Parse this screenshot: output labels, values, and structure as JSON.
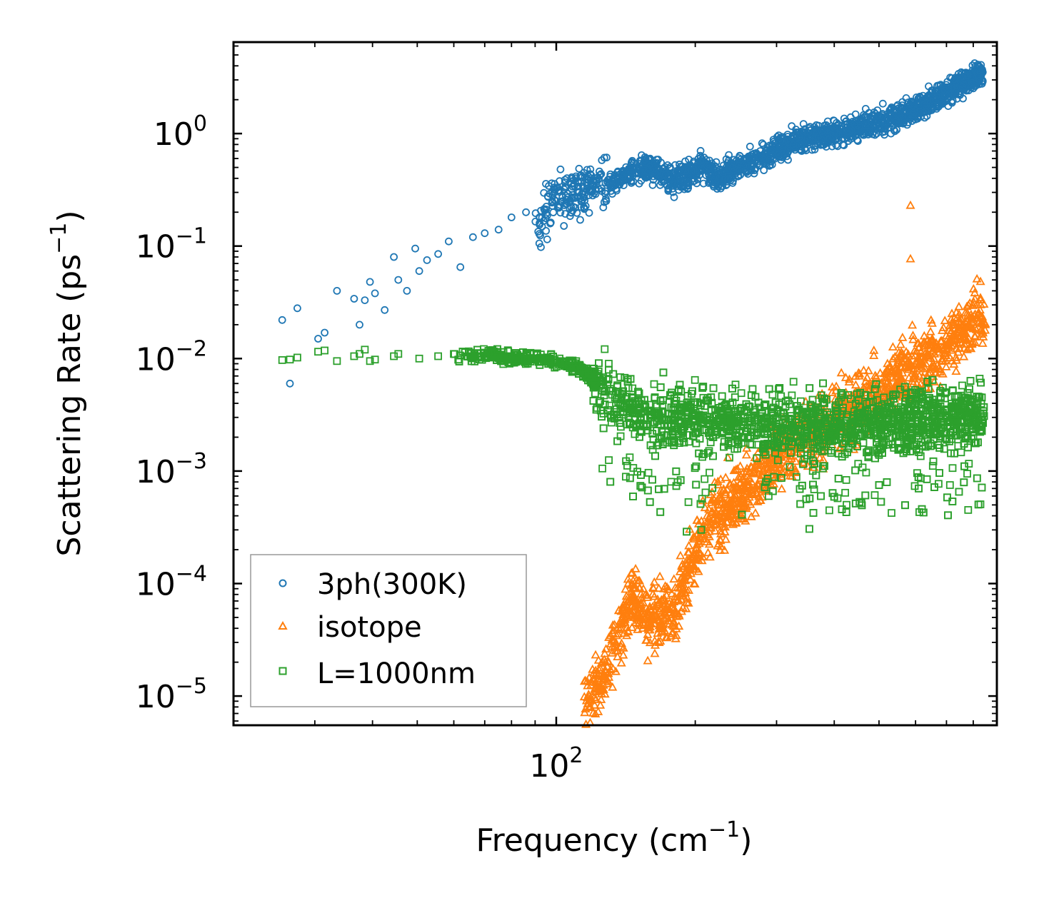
{
  "chart_data": {
    "type": "scatter",
    "title": "",
    "xlabel": "Frequency (cm",
    "xlabel_sup": "−1",
    "xlabel_suffix": ")",
    "ylabel": "Scattering Rate (ps",
    "ylabel_sup": "−1",
    "ylabel_suffix": ")",
    "xscale": "log",
    "yscale": "log",
    "xlim": [
      20,
      900
    ],
    "ylim": [
      5.5e-06,
      6.5
    ],
    "grid": false,
    "legend_position": "bottom-left",
    "x_ticks": [
      {
        "value": 100,
        "base": "10",
        "exp": "2"
      }
    ],
    "y_ticks": [
      {
        "value": 1,
        "base": "10",
        "exp": "0"
      },
      {
        "value": 0.1,
        "base": "10",
        "exp": "−1"
      },
      {
        "value": 0.01,
        "base": "10",
        "exp": "−2"
      },
      {
        "value": 0.001,
        "base": "10",
        "exp": "−3"
      },
      {
        "value": 0.0001,
        "base": "10",
        "exp": "−4"
      },
      {
        "value": 1e-05,
        "base": "10",
        "exp": "−5"
      }
    ],
    "series": [
      {
        "name": "3ph(300K)",
        "marker": "circle",
        "color": "#1f77b4",
        "x": [
          25.5,
          26.5,
          27.5,
          30.5,
          31.5,
          33.5,
          36.5,
          37.5,
          38.5,
          39.5,
          40.5,
          42.5,
          44.5,
          45.5,
          47.5,
          49.5,
          50.5,
          52.5,
          55.5,
          58.5,
          62,
          66,
          70,
          75,
          80,
          86,
          92,
          98,
          105,
          112,
          120,
          130,
          140,
          150,
          160,
          170,
          180,
          195,
          210,
          225,
          240,
          260,
          280,
          300,
          320,
          345,
          370,
          395,
          420,
          450,
          480,
          510,
          550,
          590,
          630,
          680,
          730,
          780,
          830
        ],
        "y": [
          0.022,
          0.006,
          0.028,
          0.015,
          0.017,
          0.04,
          0.034,
          0.02,
          0.033,
          0.048,
          0.038,
          0.027,
          0.08,
          0.05,
          0.04,
          0.095,
          0.06,
          0.075,
          0.085,
          0.11,
          0.065,
          0.12,
          0.13,
          0.14,
          0.18,
          0.2,
          0.16,
          0.25,
          0.26,
          0.3,
          0.35,
          0.36,
          0.42,
          0.45,
          0.5,
          0.42,
          0.38,
          0.45,
          0.5,
          0.4,
          0.48,
          0.55,
          0.6,
          0.7,
          0.8,
          0.9,
          0.95,
          1.0,
          1.05,
          1.1,
          1.2,
          1.3,
          1.45,
          1.6,
          1.85,
          2.2,
          2.6,
          3.0,
          3.3
        ]
      },
      {
        "name": "isotope",
        "marker": "triangle",
        "color": "#ff7f0e",
        "x": [
          118,
          122,
          126,
          130,
          134,
          138,
          142,
          147,
          152,
          158,
          165,
          172,
          180,
          188,
          196,
          205,
          215,
          225,
          235,
          245,
          255,
          265,
          280,
          300,
          320,
          340,
          360,
          380,
          400,
          420,
          440,
          460,
          480,
          500,
          520,
          550,
          580,
          620,
          660,
          700,
          740,
          780,
          820,
          850
        ],
        "y": [
          1e-05,
          1.2e-05,
          1.5e-05,
          2e-05,
          2.8e-05,
          4e-05,
          5.5e-05,
          7e-05,
          6e-05,
          5e-05,
          5e-05,
          5.5e-05,
          6e-05,
          9e-05,
          0.00015,
          0.00025,
          0.00035,
          0.0004,
          0.0005,
          0.0006,
          0.0007,
          0.0008,
          0.001,
          0.0013,
          0.0016,
          0.002,
          0.0022,
          0.0025,
          0.0028,
          0.0032,
          0.0035,
          0.004,
          0.0045,
          0.005,
          0.006,
          0.007,
          0.008,
          0.009,
          0.011,
          0.013,
          0.016,
          0.02,
          0.025,
          0.02
        ],
        "outliers_x": [
          585,
          585
        ],
        "outliers_y": [
          0.23,
          0.077
        ]
      },
      {
        "name": "L=1000nm",
        "marker": "square",
        "color": "#2ca02c",
        "x": [
          25.5,
          26.5,
          27.5,
          30.5,
          31.5,
          33.5,
          36.5,
          37.5,
          38.5,
          39.5,
          40.5,
          44.5,
          45.5,
          50.5,
          55.5,
          60,
          66,
          72,
          80,
          88,
          95,
          102,
          110,
          118,
          126,
          134,
          142,
          150,
          160,
          170,
          180,
          190,
          200,
          215,
          230,
          245,
          260,
          280,
          300,
          320,
          345,
          370,
          395,
          420,
          450,
          480,
          510,
          550,
          590,
          630,
          680,
          730,
          780,
          830
        ],
        "y": [
          0.0097,
          0.0098,
          0.0102,
          0.0115,
          0.0118,
          0.0095,
          0.0105,
          0.011,
          0.012,
          0.0095,
          0.0098,
          0.0105,
          0.011,
          0.01,
          0.0105,
          0.011,
          0.0105,
          0.011,
          0.01,
          0.01,
          0.0098,
          0.0095,
          0.0085,
          0.007,
          0.0055,
          0.0045,
          0.004,
          0.0035,
          0.0032,
          0.003,
          0.003,
          0.0029,
          0.0028,
          0.0028,
          0.0028,
          0.0027,
          0.0027,
          0.0027,
          0.0026,
          0.0026,
          0.0026,
          0.0025,
          0.0025,
          0.0025,
          0.0025,
          0.0026,
          0.0026,
          0.0027,
          0.0027,
          0.0028,
          0.0029,
          0.003,
          0.0031,
          0.0032
        ]
      }
    ]
  }
}
